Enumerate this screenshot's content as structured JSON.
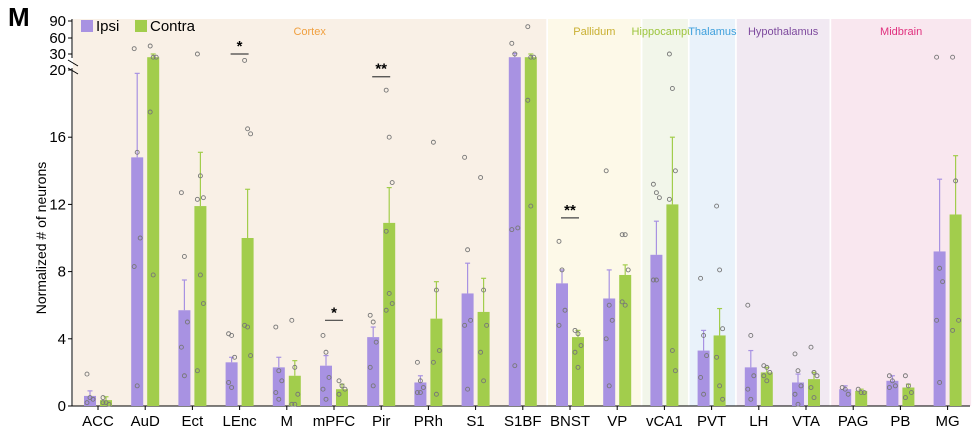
{
  "panel_label": "M",
  "chart_data": {
    "type": "bar",
    "ylabel": "Normalized # of neurons",
    "ylim": [
      0,
      90
    ],
    "y_axis_break": [
      20,
      30
    ],
    "yticks_lower": [
      0,
      4,
      8,
      12,
      16,
      20
    ],
    "yticks_upper": [
      30,
      60,
      90
    ],
    "legend": {
      "placement": "top-left",
      "entries": [
        "Ipsi",
        "Contra"
      ]
    },
    "colors": {
      "Ipsi": "#a892e2",
      "Contra": "#a2cd4c"
    },
    "categories": [
      "ACC",
      "AuD",
      "Ect",
      "LEnc",
      "M",
      "mPFC",
      "Pir",
      "PRh",
      "S1",
      "S1BF",
      "BNST",
      "VP",
      "vCA1",
      "PVT",
      "LH",
      "VTA",
      "PAG",
      "PB",
      "MG"
    ],
    "series": [
      {
        "name": "Ipsi",
        "values": [
          0.6,
          14.8,
          5.7,
          2.6,
          2.3,
          2.4,
          4.1,
          1.4,
          6.7,
          28,
          7.3,
          6.4,
          9.0,
          3.3,
          2.3,
          1.4,
          1.0,
          1.5,
          9.2
        ],
        "errors": [
          0.3,
          5.0,
          1.8,
          0.3,
          0.6,
          0.6,
          0.6,
          0.4,
          1.8,
          3,
          0.8,
          1.7,
          2.0,
          1.2,
          1.0,
          0.5,
          0.2,
          0.3,
          4.3
        ],
        "points": [
          [
            1.9,
            0.5,
            0.4,
            0.2
          ],
          [
            40,
            15.1,
            10.0,
            8.3,
            1.2
          ],
          [
            12.7,
            8.9,
            5.0,
            3.5,
            1.8
          ],
          [
            4.3,
            4.2,
            2.9,
            1.4,
            1.1
          ],
          [
            4.7,
            2.1,
            1.5,
            0.8,
            0.4
          ],
          [
            4.2,
            3.2,
            1.7,
            1.0,
            0.4
          ],
          [
            5.4,
            5.0,
            3.8,
            2.3,
            1.2
          ],
          [
            2.6,
            1.5,
            1.1,
            0.8,
            0.8
          ],
          [
            14.8,
            9.3,
            5.1,
            4.8,
            1.0
          ],
          [
            50,
            30,
            10.6,
            10.5,
            2.4
          ],
          [
            9.8,
            8.1,
            5.7,
            4.8
          ],
          [
            14.0,
            6.0,
            5.1,
            4.0,
            1.2
          ],
          [
            13.2,
            12.7,
            12.4,
            7.5,
            7.5
          ],
          [
            7.6,
            4.2,
            3.0,
            1.7,
            0.7
          ],
          [
            6.0,
            4.2,
            1.8,
            1.0,
            0.4
          ],
          [
            3.1,
            2.1,
            1.2,
            0.7,
            0.1
          ],
          [
            1.1,
            1.0,
            0.7
          ],
          [
            1.8,
            1.5,
            1.2,
            1.1
          ],
          [
            28,
            8.2,
            7.4,
            5.1,
            1.4
          ]
        ]
      },
      {
        "name": "Contra",
        "values": [
          0.35,
          28,
          11.9,
          10.0,
          1.8,
          1.0,
          10.9,
          5.2,
          5.6,
          28,
          4.1,
          7.8,
          12.0,
          4.2,
          2.0,
          1.6,
          0.9,
          1.1,
          11.4
        ],
        "errors": [
          0.2,
          2,
          3.2,
          2.9,
          0.9,
          0.3,
          2.1,
          2.2,
          2.0,
          2,
          0.4,
          0.6,
          4.0,
          1.6,
          0.3,
          0.4,
          0.1,
          0.2,
          3.5
        ],
        "points": [
          [
            0.5,
            0.2,
            0.1,
            0.2
          ],
          [
            45,
            28,
            28,
            17.5,
            7.8
          ],
          [
            30,
            13.7,
            12.4,
            12.3,
            7.8,
            6.1,
            2.1
          ],
          [
            26,
            16.5,
            16.2,
            4.8,
            4.7,
            3.0
          ],
          [
            5.1,
            2.3,
            0.7,
            0.1,
            0.1
          ],
          [
            1.5,
            1.2,
            1.0,
            0.7
          ],
          [
            18.8,
            16.0,
            13.3,
            10.4,
            6.7,
            6.1,
            5.7
          ],
          [
            15.7,
            6.9,
            3.3,
            2.6,
            0.7
          ],
          [
            13.6,
            6.9,
            4.8,
            3.2,
            1.5
          ],
          [
            80,
            28,
            28,
            18.2,
            11.9
          ],
          [
            4.5,
            4.3,
            3.6,
            3.2,
            2.3
          ],
          [
            10.2,
            10.2,
            8.1,
            6.2,
            6.0
          ],
          [
            30,
            18.9,
            14.0,
            12.3,
            3.3,
            2.1
          ],
          [
            11.9,
            8.1,
            4.6,
            2.9,
            1.2,
            0.4
          ],
          [
            2.4,
            2.3,
            2.0,
            1.8,
            1.5
          ],
          [
            3.5,
            2.0,
            1.8,
            1.1,
            0.5
          ],
          [
            1.0,
            0.8,
            0.8
          ],
          [
            1.8,
            1.2,
            0.8,
            0.5
          ],
          [
            28,
            13.4,
            5.1,
            4.5
          ]
        ]
      }
    ],
    "significance": [
      {
        "category": "LEnc",
        "label": "*",
        "y": 30
      },
      {
        "category": "mPFC",
        "label": "*",
        "y": 5.1
      },
      {
        "category": "Pir",
        "label": "**",
        "y": 19.6
      },
      {
        "category": "BNST",
        "label": "**",
        "y": 11.2
      }
    ],
    "regions": [
      {
        "name": "Cortex",
        "from": "ACC",
        "to": "S1BF",
        "bg": "#f9f0e6",
        "color": "#f0a040"
      },
      {
        "name": "Pallidum",
        "from": "BNST",
        "to": "VP",
        "bg": "#fdf9e8",
        "color": "#c9b032"
      },
      {
        "name": "Hippocampus",
        "from": "vCA1",
        "to": "vCA1",
        "bg": "#f2f6ea",
        "color": "#9cc43c"
      },
      {
        "name": "Thalamus",
        "from": "PVT",
        "to": "PVT",
        "bg": "#e9f2fa",
        "color": "#3ea0dc"
      },
      {
        "name": "Hypothalamus",
        "from": "LH",
        "to": "VTA",
        "bg": "#f1e9f2",
        "color": "#7e4a9e"
      },
      {
        "name": "Midbrain",
        "from": "PAG",
        "to": "MG",
        "bg": "#f9e7ef",
        "color": "#e0307e"
      }
    ]
  }
}
